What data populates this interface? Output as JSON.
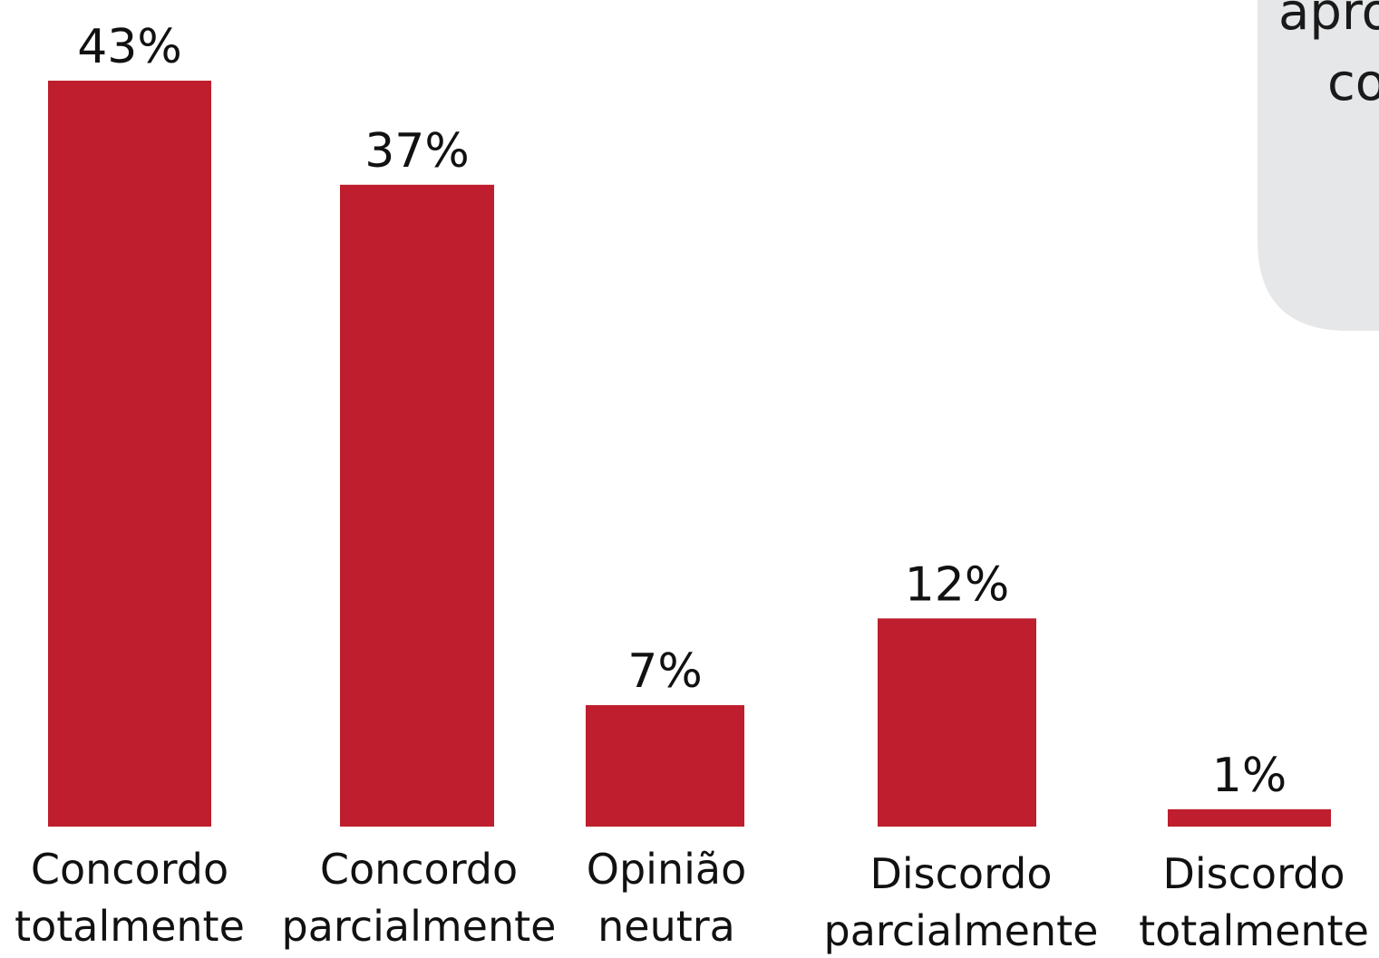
{
  "callout": {
    "lines": [
      "apro",
      "co"
    ],
    "background": "#e6e7e8"
  },
  "colors": {
    "bar": "#be1e2d",
    "text": "#111111"
  },
  "chart_data": {
    "type": "bar",
    "categories": [
      [
        "Concordo",
        "totalmente"
      ],
      [
        "Concordo",
        "parcialmente"
      ],
      [
        "Opinião",
        "neutra"
      ],
      [
        "Discordo",
        "parcialmente"
      ],
      [
        "Discordo",
        "totalmente"
      ]
    ],
    "values": [
      43,
      37,
      7,
      12,
      1
    ],
    "value_labels": [
      "43%",
      "37%",
      "7%",
      "12%",
      "1%"
    ],
    "unit": "%",
    "ylim": [
      0,
      43
    ],
    "grid": false,
    "legend": "none"
  }
}
